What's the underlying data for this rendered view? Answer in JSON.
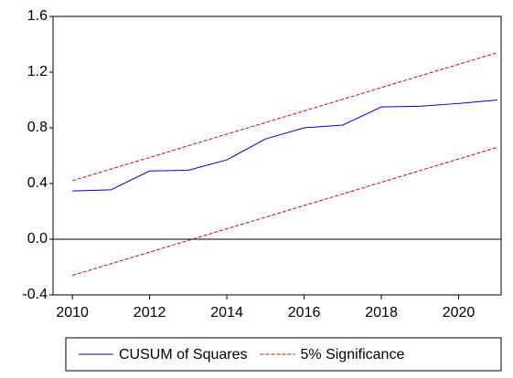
{
  "chart_data": {
    "type": "line",
    "x": [
      2010,
      2011,
      2012,
      2013,
      2014,
      2015,
      2016,
      2017,
      2018,
      2019,
      2020,
      2021
    ],
    "series": [
      {
        "name": "CUSUM of Squares",
        "color": "#0000cc",
        "dash": false,
        "values": [
          0.347,
          0.355,
          0.49,
          0.495,
          0.57,
          0.72,
          0.8,
          0.82,
          0.95,
          0.955,
          0.975,
          1.0
        ]
      },
      {
        "name": "5% Significance",
        "color": "#e00000",
        "dash": true,
        "values": [
          0.42,
          0.504,
          0.587,
          0.671,
          0.755,
          0.838,
          0.922,
          1.005,
          1.089,
          1.173,
          1.256,
          1.34
        ]
      },
      {
        "name": null,
        "color": "#e00000",
        "dash": true,
        "values": [
          -0.26,
          -0.176,
          -0.093,
          -0.009,
          0.075,
          0.158,
          0.242,
          0.325,
          0.409,
          0.493,
          0.576,
          0.66
        ]
      }
    ],
    "xlim": [
      2009.5,
      2021.1
    ],
    "xticks": [
      2010,
      2012,
      2014,
      2016,
      2018,
      2020
    ],
    "ylim": [
      -0.4,
      1.6
    ],
    "yticks": [
      {
        "value": -0.4,
        "label": "-0.4"
      },
      {
        "value": 0,
        "label": "0.0"
      },
      0.4,
      0.8,
      1.2,
      1.6
    ],
    "zero_line": true,
    "legend": "bottom"
  }
}
